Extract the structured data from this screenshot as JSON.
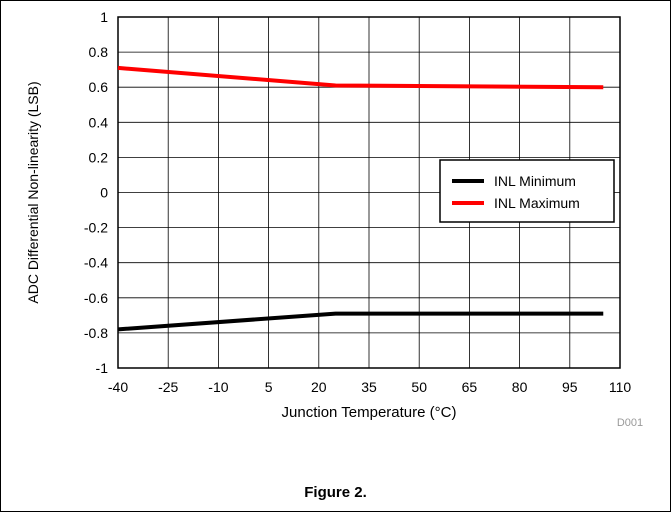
{
  "chart_data": {
    "type": "line",
    "xlabel": "Junction Temperature (°C)",
    "ylabel": "ADC Differential Non-linearity (LSB)",
    "xlim": [
      -40,
      110
    ],
    "ylim": [
      -1,
      1
    ],
    "xticks": [
      -40,
      -25,
      -10,
      5,
      20,
      35,
      50,
      65,
      80,
      95,
      110
    ],
    "yticks": [
      -1,
      -0.8,
      -0.6,
      -0.4,
      -0.2,
      0,
      0.2,
      0.4,
      0.6,
      0.8,
      1
    ],
    "grid": true,
    "legend_position": "middle-right",
    "series": [
      {
        "name": "INL Minimum",
        "color": "#000000",
        "x": [
          -40,
          25,
          105
        ],
        "y": [
          -0.78,
          -0.69,
          -0.69
        ]
      },
      {
        "name": "INL Maximum",
        "color": "#ff0000",
        "x": [
          -40,
          25,
          105
        ],
        "y": [
          0.71,
          0.61,
          0.6
        ]
      }
    ],
    "code_label": "D001"
  },
  "figure": {
    "caption": "Figure 2."
  }
}
